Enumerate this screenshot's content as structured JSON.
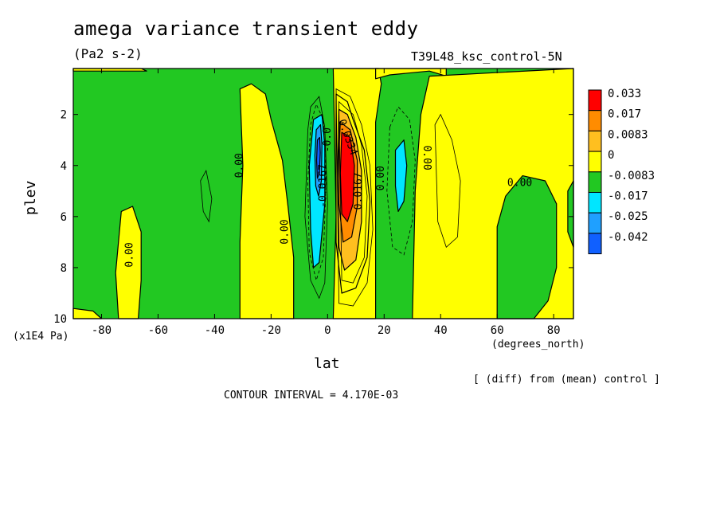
{
  "chart_data": {
    "type": "heatmap",
    "title": "amega variance transient eddy",
    "units": "(Pa2 s-2)",
    "run_label": "T39L48_ksc_control-5N",
    "xlabel": "lat",
    "ylabel": "plev",
    "x_unit": "(degrees_north)",
    "y_unit": "(x1E4 Pa)",
    "xlim": [
      -90,
      87
    ],
    "ylim": [
      10,
      0.2
    ],
    "x_ticks": [
      "-80",
      "-60",
      "-40",
      "-20",
      "0",
      "20",
      "40",
      "60",
      "80"
    ],
    "x_tick_values": [
      -80,
      -60,
      -40,
      -20,
      0,
      20,
      40,
      60,
      80
    ],
    "y_ticks": [
      "2",
      "4",
      "6",
      "8",
      "10"
    ],
    "y_tick_values": [
      2,
      4,
      6,
      8,
      10
    ],
    "diff_note": "[ (diff) from (mean) control ]",
    "contour_interval": "CONTOUR INTERVAL = 4.170E-03",
    "legend": {
      "placement": "right",
      "labels": [
        "0.033",
        "0.017",
        "0.0083",
        "0",
        "-0.0083",
        "-0.017",
        "-0.025",
        "-0.042"
      ],
      "colors": [
        "#ff0000",
        "#ff8c00",
        "#ffbf1f",
        "#ffff00",
        "#22c822",
        "#00e6ff",
        "#1fa0ff",
        "#1060ff"
      ]
    },
    "regions": [
      {
        "level": "0",
        "color": "#ffff00",
        "poly": [
          [
            -90,
            0.2
          ],
          [
            -76,
            0.2
          ],
          [
            -66,
            0.2
          ],
          [
            -64,
            0.3
          ],
          [
            -90,
            0.3
          ]
        ]
      },
      {
        "level": "0",
        "color": "#ffff00",
        "poly": [
          [
            -31,
            1.0
          ],
          [
            -27,
            0.8
          ],
          [
            -22,
            1.2
          ],
          [
            -20,
            2.2
          ],
          [
            -16,
            3.8
          ],
          [
            -14,
            5.6
          ],
          [
            -12,
            7.6
          ],
          [
            -12,
            10
          ],
          [
            -31,
            10
          ],
          [
            -31,
            7
          ],
          [
            -30,
            4
          ]
        ]
      },
      {
        "level": "0",
        "color": "#ffff00",
        "poly": [
          [
            -73,
            5.8
          ],
          [
            -69,
            5.6
          ],
          [
            -66,
            6.6
          ],
          [
            -66,
            8.5
          ],
          [
            -67,
            10
          ],
          [
            -74,
            10
          ],
          [
            -75,
            8.2
          ]
        ]
      },
      {
        "level": "0",
        "color": "#ffff00",
        "poly": [
          [
            -90,
            9.6
          ],
          [
            -83,
            9.7
          ],
          [
            -80,
            10
          ],
          [
            -90,
            10
          ]
        ]
      },
      {
        "level": "0",
        "color": "#ffff00",
        "poly": [
          [
            2,
            0.2
          ],
          [
            18,
            0.2
          ],
          [
            19,
            0.8
          ],
          [
            17,
            2.3
          ],
          [
            17,
            10
          ],
          [
            2,
            10
          ],
          [
            3,
            6
          ]
        ]
      },
      {
        "level": "0",
        "color": "#ffff00",
        "poly": [
          [
            17,
            0.2
          ],
          [
            42,
            0.2
          ],
          [
            42,
            0.5
          ],
          [
            36,
            0.3
          ],
          [
            22,
            0.45
          ],
          [
            17,
            0.6
          ]
        ]
      },
      {
        "level": "0",
        "color": "#ffff00",
        "poly": [
          [
            36,
            0.5
          ],
          [
            87,
            0.2
          ],
          [
            87,
            10
          ],
          [
            30,
            10
          ],
          [
            31,
            5
          ],
          [
            33,
            2
          ]
        ]
      },
      {
        "level": "0",
        "color": "#ffff00",
        "poly": [
          [
            3,
            1.2
          ],
          [
            7,
            1.5
          ],
          [
            9,
            2.2
          ],
          [
            13,
            3.4
          ],
          [
            15,
            5.4
          ],
          [
            14,
            7.6
          ],
          [
            10,
            8.8
          ],
          [
            5,
            9.0
          ],
          [
            3,
            7
          ]
        ]
      },
      {
        "level": "0.0083",
        "color": "#ffbf1f",
        "poly": [
          [
            4,
            1.8
          ],
          [
            7,
            2.0
          ],
          [
            10,
            2.9
          ],
          [
            12,
            4.2
          ],
          [
            12,
            6.2
          ],
          [
            10,
            7.7
          ],
          [
            6,
            8.1
          ],
          [
            4,
            7.2
          ],
          [
            3.5,
            4.5
          ]
        ]
      },
      {
        "level": "0.017",
        "color": "#ff8c00",
        "poly": [
          [
            4.5,
            2.3
          ],
          [
            8,
            2.6
          ],
          [
            10.5,
            3.8
          ],
          [
            10.5,
            5.6
          ],
          [
            8.5,
            6.8
          ],
          [
            5.5,
            7.0
          ],
          [
            4,
            5.5
          ],
          [
            4,
            3.5
          ]
        ]
      },
      {
        "level": "0.033",
        "color": "#ff0000",
        "poly": [
          [
            5,
            2.7
          ],
          [
            8,
            2.9
          ],
          [
            9.5,
            4.0
          ],
          [
            9,
            5.5
          ],
          [
            7,
            6.2
          ],
          [
            5,
            5.9
          ],
          [
            4.5,
            4.3
          ]
        ]
      },
      {
        "level": "0",
        "color": "#22c822",
        "poly": [
          [
            60,
            10
          ],
          [
            60,
            6.4
          ],
          [
            63,
            5.2
          ],
          [
            69,
            4.4
          ],
          [
            77,
            4.6
          ],
          [
            81,
            5.5
          ],
          [
            81,
            8
          ],
          [
            78,
            9.3
          ],
          [
            73,
            10
          ]
        ]
      },
      {
        "level": "0",
        "color": "#22c822",
        "poly": [
          [
            85,
            5.0
          ],
          [
            87,
            4.6
          ],
          [
            87,
            7.2
          ],
          [
            85,
            6.6
          ]
        ]
      },
      {
        "level": "-0.0083",
        "color": "#00e6ff",
        "poly": [
          [
            -5,
            2.2
          ],
          [
            -2,
            2.0
          ],
          [
            -1,
            3.2
          ],
          [
            -1,
            5.5
          ],
          [
            -3,
            7.8
          ],
          [
            -5,
            8.0
          ],
          [
            -6,
            6.5
          ],
          [
            -6.5,
            4.0
          ]
        ]
      },
      {
        "level": "-0.017",
        "color": "#1fa0ff",
        "poly": [
          [
            -4,
            2.6
          ],
          [
            -2.5,
            2.4
          ],
          [
            -2,
            3.2
          ],
          [
            -2.2,
            4.6
          ],
          [
            -3.2,
            5.2
          ],
          [
            -4.2,
            4.8
          ],
          [
            -4.5,
            3.6
          ]
        ]
      },
      {
        "level": "-0.025",
        "color": "#1060ff",
        "poly": [
          [
            -3.6,
            3.0
          ],
          [
            -2.8,
            2.9
          ],
          [
            -2.6,
            3.5
          ],
          [
            -2.9,
            4.3
          ],
          [
            -3.6,
            4.5
          ],
          [
            -3.9,
            3.8
          ]
        ]
      },
      {
        "level": "-0.0083",
        "color": "#00e6ff",
        "poly": [
          [
            24,
            3.4
          ],
          [
            27,
            3.0
          ],
          [
            28,
            4.0
          ],
          [
            27,
            5.4
          ],
          [
            25,
            5.8
          ],
          [
            24,
            4.8
          ]
        ]
      }
    ],
    "contour_lines": [
      {
        "dashed": false,
        "pts": [
          [
            -7,
            2.6
          ],
          [
            -6,
            1.7
          ],
          [
            -3,
            1.3
          ],
          [
            -1,
            2.5
          ],
          [
            0,
            5.5
          ],
          [
            -1,
            8.6
          ],
          [
            -3,
            9.2
          ],
          [
            -6,
            8.5
          ],
          [
            -8,
            6
          ]
        ]
      },
      {
        "dashed": true,
        "pts": [
          [
            -6,
            2.4
          ],
          [
            -4,
            1.6
          ],
          [
            -1.5,
            2.2
          ],
          [
            -0.5,
            4.5
          ],
          [
            -1.5,
            7.6
          ],
          [
            -4,
            8.5
          ],
          [
            -6.5,
            7.4
          ],
          [
            -7,
            4.6
          ]
        ]
      },
      {
        "dashed": false,
        "pts": [
          [
            3,
            1.0
          ],
          [
            8,
            1.3
          ],
          [
            12,
            2.4
          ],
          [
            15,
            4.0
          ],
          [
            16,
            6.5
          ],
          [
            14,
            8.6
          ],
          [
            9,
            9.5
          ],
          [
            4,
            9.4
          ]
        ]
      },
      {
        "dashed": false,
        "pts": [
          [
            4,
            1.5
          ],
          [
            9,
            2.0
          ],
          [
            12,
            3.2
          ],
          [
            14,
            5.2
          ],
          [
            13,
            7.6
          ],
          [
            9,
            8.6
          ],
          [
            5,
            8.5
          ]
        ]
      },
      {
        "dashed": true,
        "pts": [
          [
            22,
            2.5
          ],
          [
            25,
            1.7
          ],
          [
            29,
            2.2
          ],
          [
            31,
            3.8
          ],
          [
            30,
            6.2
          ],
          [
            27,
            7.5
          ],
          [
            23,
            7.2
          ],
          [
            21,
            5
          ]
        ]
      },
      {
        "dashed": false,
        "pts": [
          [
            38,
            2.4
          ],
          [
            40,
            2.0
          ],
          [
            44,
            3.0
          ],
          [
            47,
            4.6
          ],
          [
            46,
            6.8
          ],
          [
            42,
            7.2
          ],
          [
            39,
            6.2
          ]
        ]
      },
      {
        "dashed": false,
        "pts": [
          [
            -45,
            4.6
          ],
          [
            -43,
            4.2
          ],
          [
            -41,
            5.3
          ],
          [
            -42,
            6.2
          ],
          [
            -44,
            5.8
          ]
        ]
      }
    ],
    "annotations": [
      {
        "text": "0.00",
        "x": -31,
        "y": 4.0,
        "rotate": -90
      },
      {
        "text": "0.00",
        "x": -15,
        "y": 6.6,
        "rotate": -90
      },
      {
        "text": "0.00",
        "x": -70,
        "y": 7.5,
        "rotate": -90
      },
      {
        "text": "0.00",
        "x": 19,
        "y": 4.5,
        "rotate": -90
      },
      {
        "text": "0.00",
        "x": 35,
        "y": 3.7,
        "rotate": 90
      },
      {
        "text": "0.00",
        "x": 68,
        "y": 4.7,
        "rotate": 0
      },
      {
        "text": "-0.0167",
        "x": -1.5,
        "y": 4.8,
        "rotate": -90
      },
      {
        "text": "0.0167",
        "x": 11,
        "y": 5.0,
        "rotate": -90
      },
      {
        "text": "0.0334",
        "x": 7,
        "y": 2.9,
        "rotate": 70
      },
      {
        "text": "-0.0",
        "x": 0,
        "y": 3.0,
        "rotate": -90
      }
    ]
  }
}
